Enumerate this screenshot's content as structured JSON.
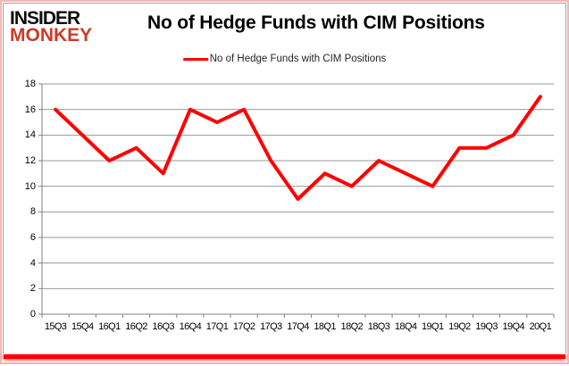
{
  "brand": {
    "line1": "INSIDER",
    "line2": "MONKEY",
    "line2_color": "#cd3b29"
  },
  "header": {
    "title": "No of Hedge Funds with CIM Positions"
  },
  "legend": {
    "label": "No of Hedge Funds with CIM Positions",
    "line_color": "#ff0000"
  },
  "chart_data": {
    "type": "line",
    "title": "No of Hedge Funds with CIM Positions",
    "categories": [
      "15Q3",
      "15Q4",
      "16Q1",
      "16Q2",
      "16Q3",
      "16Q4",
      "17Q1",
      "17Q2",
      "17Q3",
      "17Q4",
      "18Q1",
      "18Q2",
      "18Q3",
      "18Q4",
      "19Q1",
      "19Q2",
      "19Q3",
      "19Q4",
      "20Q1"
    ],
    "series": [
      {
        "name": "No of Hedge Funds with CIM Positions",
        "color": "#ff0000",
        "values": [
          16,
          14,
          12,
          13,
          11,
          16,
          15,
          16,
          12,
          9,
          11,
          10,
          12,
          11,
          10,
          13,
          13,
          14,
          17
        ]
      }
    ],
    "xlabel": "",
    "ylabel": "",
    "ylim": [
      0,
      18
    ],
    "ytick_step": 2,
    "yticks": [
      0,
      2,
      4,
      6,
      8,
      10,
      12,
      14,
      16,
      18
    ],
    "grid": true,
    "gridline_color": "#999999",
    "axis_color": "#808080",
    "legend_position": "top-center"
  }
}
